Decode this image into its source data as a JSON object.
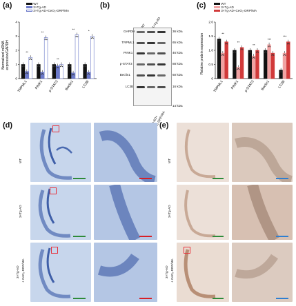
{
  "panel_labels": {
    "a": "(a)",
    "b": "(b)",
    "c": "(c)",
    "d": "(d)",
    "e": "(e)"
  },
  "colors": {
    "wt": "#111111",
    "tgad": "#6b79c9",
    "tgad_light": "#aab3e6",
    "treat_blue": "#ffffff",
    "red_dark": "#d13a3a",
    "red_light": "#f0a2a2",
    "nissl_bg": "#b9cbe6",
    "ihc_bg": "#e7d8cf",
    "scale_green": "#2e8b3a",
    "scale_red": "#d81f26",
    "scale_blue": "#2f7fd1",
    "roi": "#e8323c"
  },
  "panel_a": {
    "legend": [
      "WT",
      "3×Tg-AD",
      "3×Tg-AD+CeO₂-DRP/MA"
    ],
    "ylabel_line1": "Normalized mRNA",
    "ylabel_line2": "expression/GAPDH",
    "ytick_labels": [
      "4",
      "3",
      "2",
      "1",
      "0"
    ],
    "categories": [
      "TRPML1",
      "PINK1",
      "p-STAT3",
      "Beclin1",
      "LC3B"
    ],
    "sig": [
      "**",
      "**",
      "**",
      "**",
      "*"
    ]
  },
  "panel_b": {
    "lane_labels": [
      "WT",
      "3×Tg-AD",
      "3×Tg-AD+\nCeO₂-DRP/MA"
    ],
    "lane_label_treat_1": "3×Tg-AD+",
    "lane_label_treat_2": "CeO₂-DRP/MA",
    "rows": [
      {
        "protein": "GAPDH",
        "kda": "36 kDa"
      },
      {
        "protein": "TRPML1",
        "kda": "65 kDa"
      },
      {
        "protein": "PINK1",
        "kda": "46 kDa"
      },
      {
        "protein": "p-STAT3",
        "kda": "88 kDa"
      },
      {
        "protein": "Beclin1",
        "kda": "60 kDa"
      },
      {
        "protein": "LC3B",
        "kda": "16 kDa"
      }
    ],
    "extra_kda": "14 kDa"
  },
  "panel_c": {
    "legend": [
      "WT",
      "3×Tg-AD",
      "3×Tg-AD+CeO₂-DRP/MA"
    ],
    "ylabel": "Relative protein expression",
    "ytick_labels": [
      "2.0",
      "1.5",
      "1.0",
      "0.5",
      "0"
    ],
    "categories": [
      "TRPML1",
      "PINK1",
      "p-STAT3",
      "Beclin1",
      "LC3B"
    ],
    "sig": [
      "**",
      "**",
      "**",
      "***",
      "***"
    ]
  },
  "panel_de": {
    "row_labels": [
      "WT",
      "3×Tg-AD",
      "3×Tg-AD\n+ CeO₂-DRP/MA"
    ],
    "row3_line1": "3×Tg-AD",
    "row3_line2": "+ CeO₂-DRP/MA"
  },
  "chart_data": [
    {
      "type": "bar",
      "title": "",
      "xlabel": "",
      "ylabel": "Normalized mRNA expression/GAPDH",
      "ylim": [
        0,
        4
      ],
      "categories": [
        "TRPML1",
        "PINK1",
        "p-STAT3",
        "Beclin1",
        "LC3B"
      ],
      "series": [
        {
          "name": "WT",
          "values": [
            1.0,
            1.0,
            1.0,
            1.0,
            1.0
          ]
        },
        {
          "name": "3×Tg-AD",
          "values": [
            0.5,
            0.45,
            0.9,
            0.4,
            0.45
          ]
        },
        {
          "name": "3×Tg-AD+CeO₂-DRP/MA",
          "values": [
            1.5,
            2.9,
            1.0,
            3.1,
            3.0
          ]
        }
      ]
    },
    {
      "type": "bar",
      "title": "",
      "xlabel": "",
      "ylabel": "Relative protein expression",
      "ylim": [
        0,
        2.0
      ],
      "categories": [
        "TRPML1",
        "PINK1",
        "p-STAT3",
        "Beclin1",
        "LC3B"
      ],
      "series": [
        {
          "name": "WT",
          "values": [
            1.4,
            1.0,
            1.0,
            1.0,
            0.3
          ]
        },
        {
          "name": "3×Tg-AD",
          "values": [
            0.9,
            0.4,
            0.8,
            1.2,
            0.9
          ]
        },
        {
          "name": "3×Tg-AD+CeO₂-DRP/MA",
          "values": [
            1.3,
            1.1,
            1.0,
            0.9,
            1.3
          ]
        }
      ]
    }
  ]
}
